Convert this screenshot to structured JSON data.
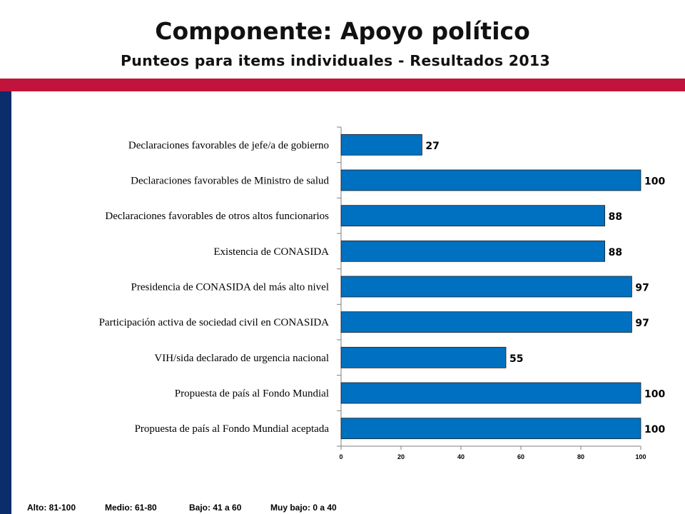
{
  "header": {
    "title": "Componente: Apoyo político",
    "subtitle": "Punteos para items individuales - Resultados 2013"
  },
  "colors": {
    "accent_red": "#C0143C",
    "accent_navy": "#0B2D6B",
    "bar_fill": "#0070C0"
  },
  "chart_data": {
    "type": "bar",
    "orientation": "horizontal",
    "categories": [
      "Declaraciones favorables de jefe/a de gobierno",
      "Declaraciones favorables de Ministro de salud",
      "Declaraciones favorables de otros altos funcionarios",
      "Existencia de CONASIDA",
      "Presidencia de CONASIDA del más alto nivel",
      "Participación activa de sociedad civil en CONASIDA",
      "VIH/sida declarado de urgencia nacional",
      "Propuesta de país al Fondo Mundial",
      "Propuesta de país al Fondo Mundial aceptada"
    ],
    "values": [
      27,
      100,
      88,
      88,
      97,
      97,
      55,
      100,
      100
    ],
    "xlim": [
      0,
      100
    ],
    "xticks": [
      "0",
      "20",
      "40",
      "60",
      "80",
      "100"
    ],
    "data_labels": true,
    "grid": false,
    "legend": "none"
  },
  "footer": {
    "scale": [
      "Alto: 81-100",
      "Medio: 61-80",
      "Bajo: 41 a 60",
      "Muy bajo: 0 a 40"
    ]
  }
}
